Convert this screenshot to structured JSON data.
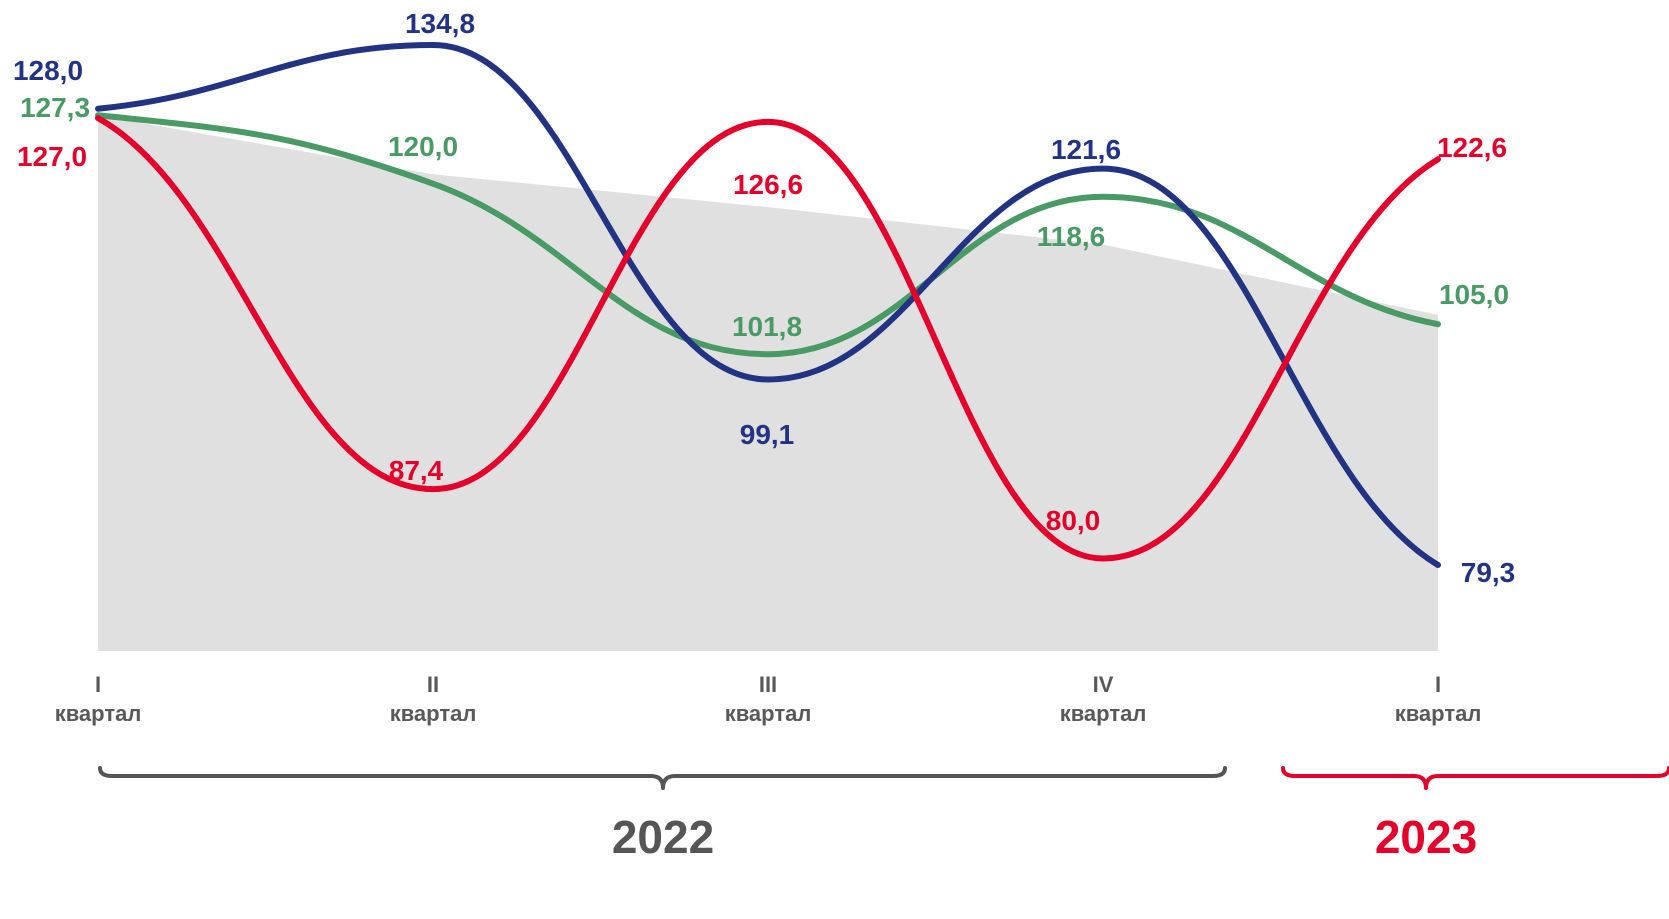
{
  "chart_data": {
    "type": "line",
    "categories": [
      {
        "numeral": "I",
        "label": "квартал"
      },
      {
        "numeral": "II",
        "label": "квартал"
      },
      {
        "numeral": "III",
        "label": "квартал"
      },
      {
        "numeral": "IV",
        "label": "квартал"
      },
      {
        "numeral": "I",
        "label": "квартал"
      }
    ],
    "years": [
      {
        "label": "2022",
        "from": 0,
        "to": 3,
        "color": "#555555"
      },
      {
        "label": "2023",
        "from": 4,
        "to": 4,
        "color": "#e4002b"
      }
    ],
    "series": [
      {
        "values": [
          128.0,
          134.8,
          99.1,
          121.6,
          79.3
        ],
        "labels": [
          "128,0",
          "134,8",
          "99,1",
          "121,6",
          "79,3"
        ],
        "color": "#233384"
      },
      {
        "values": [
          127.3,
          120.0,
          101.8,
          118.6,
          105.0
        ],
        "labels": [
          "127,3",
          "120,0",
          "101,8",
          "118,6",
          "105,0"
        ],
        "color": "#4a9a66"
      },
      {
        "values": [
          127.0,
          87.4,
          126.6,
          80.0,
          122.6
        ],
        "labels": [
          "127,0",
          "87,4",
          "126,6",
          "80,0",
          "122,6"
        ],
        "color": "#e4002b"
      }
    ],
    "background_area": {
      "values": [
        127.3,
        121.0,
        117.5,
        113.5,
        106.0
      ],
      "color": "#e0e0e0"
    },
    "ylim": [
      68,
      140
    ],
    "grid": false,
    "legend": "none",
    "tick_color": "#595959"
  }
}
